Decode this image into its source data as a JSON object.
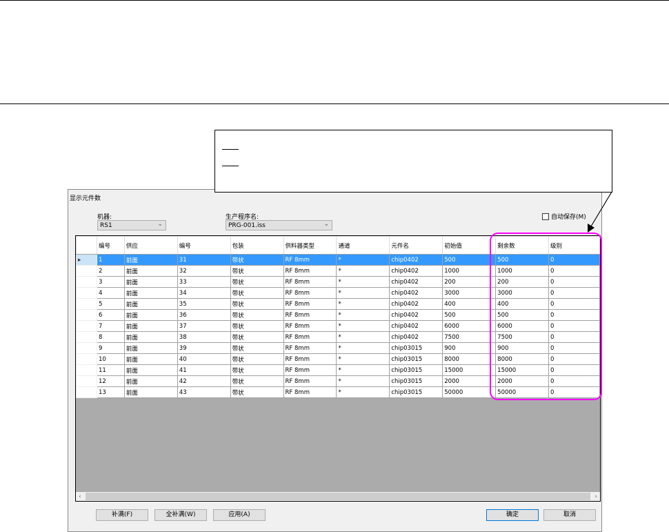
{
  "dialog": {
    "title": "显示元件数",
    "machine_label": "机器:",
    "machine_value": "RS1",
    "program_label": "生产程序名:",
    "program_value": "PRG-001.iss",
    "autosave_label": "自动保存(M)",
    "autosave_checked": false
  },
  "grid": {
    "columns": [
      "编号",
      "供应",
      "编号",
      "包装",
      "供料器类型",
      "通道",
      "元件名",
      "初始值",
      "剩余数",
      "级别"
    ],
    "rows": [
      [
        "1",
        "前面",
        "31",
        "带状",
        "RF 8mm",
        "*",
        "chip0402",
        "500",
        "500",
        "0"
      ],
      [
        "2",
        "前面",
        "32",
        "带状",
        "RF 8mm",
        "*",
        "chip0402",
        "1000",
        "1000",
        "0"
      ],
      [
        "3",
        "前面",
        "33",
        "带状",
        "RF 8mm",
        "*",
        "chip0402",
        "200",
        "200",
        "0"
      ],
      [
        "4",
        "前面",
        "34",
        "带状",
        "RF 8mm",
        "*",
        "chip0402",
        "3000",
        "3000",
        "0"
      ],
      [
        "5",
        "前面",
        "35",
        "带状",
        "RF 8mm",
        "*",
        "chip0402",
        "400",
        "400",
        "0"
      ],
      [
        "6",
        "前面",
        "36",
        "带状",
        "RF 8mm",
        "*",
        "chip0402",
        "500",
        "500",
        "0"
      ],
      [
        "7",
        "前面",
        "37",
        "带状",
        "RF 8mm",
        "*",
        "chip0402",
        "6000",
        "6000",
        "0"
      ],
      [
        "8",
        "前面",
        "38",
        "带状",
        "RF 8mm",
        "*",
        "chip0402",
        "7500",
        "7500",
        "0"
      ],
      [
        "9",
        "前面",
        "39",
        "带状",
        "RF 8mm",
        "*",
        "chip03015",
        "900",
        "900",
        "0"
      ],
      [
        "10",
        "前面",
        "40",
        "带状",
        "RF 8mm",
        "*",
        "chip03015",
        "8000",
        "8000",
        "0"
      ],
      [
        "11",
        "前面",
        "41",
        "带状",
        "RF 8mm",
        "*",
        "chip03015",
        "15000",
        "15000",
        "0"
      ],
      [
        "12",
        "前面",
        "42",
        "带状",
        "RF 8mm",
        "*",
        "chip03015",
        "2000",
        "2000",
        "0"
      ],
      [
        "13",
        "前面",
        "43",
        "带状",
        "RF 8mm",
        "*",
        "chip03015",
        "50000",
        "50000",
        "0"
      ]
    ],
    "selected_row": 0
  },
  "buttons": {
    "fill": "补满(F)",
    "fill_all": "全补满(W)",
    "apply": "应用(A)",
    "ok": "确定",
    "cancel": "取消"
  },
  "colors": {
    "highlight": "#ff00ff",
    "selection": "#3399ff"
  }
}
